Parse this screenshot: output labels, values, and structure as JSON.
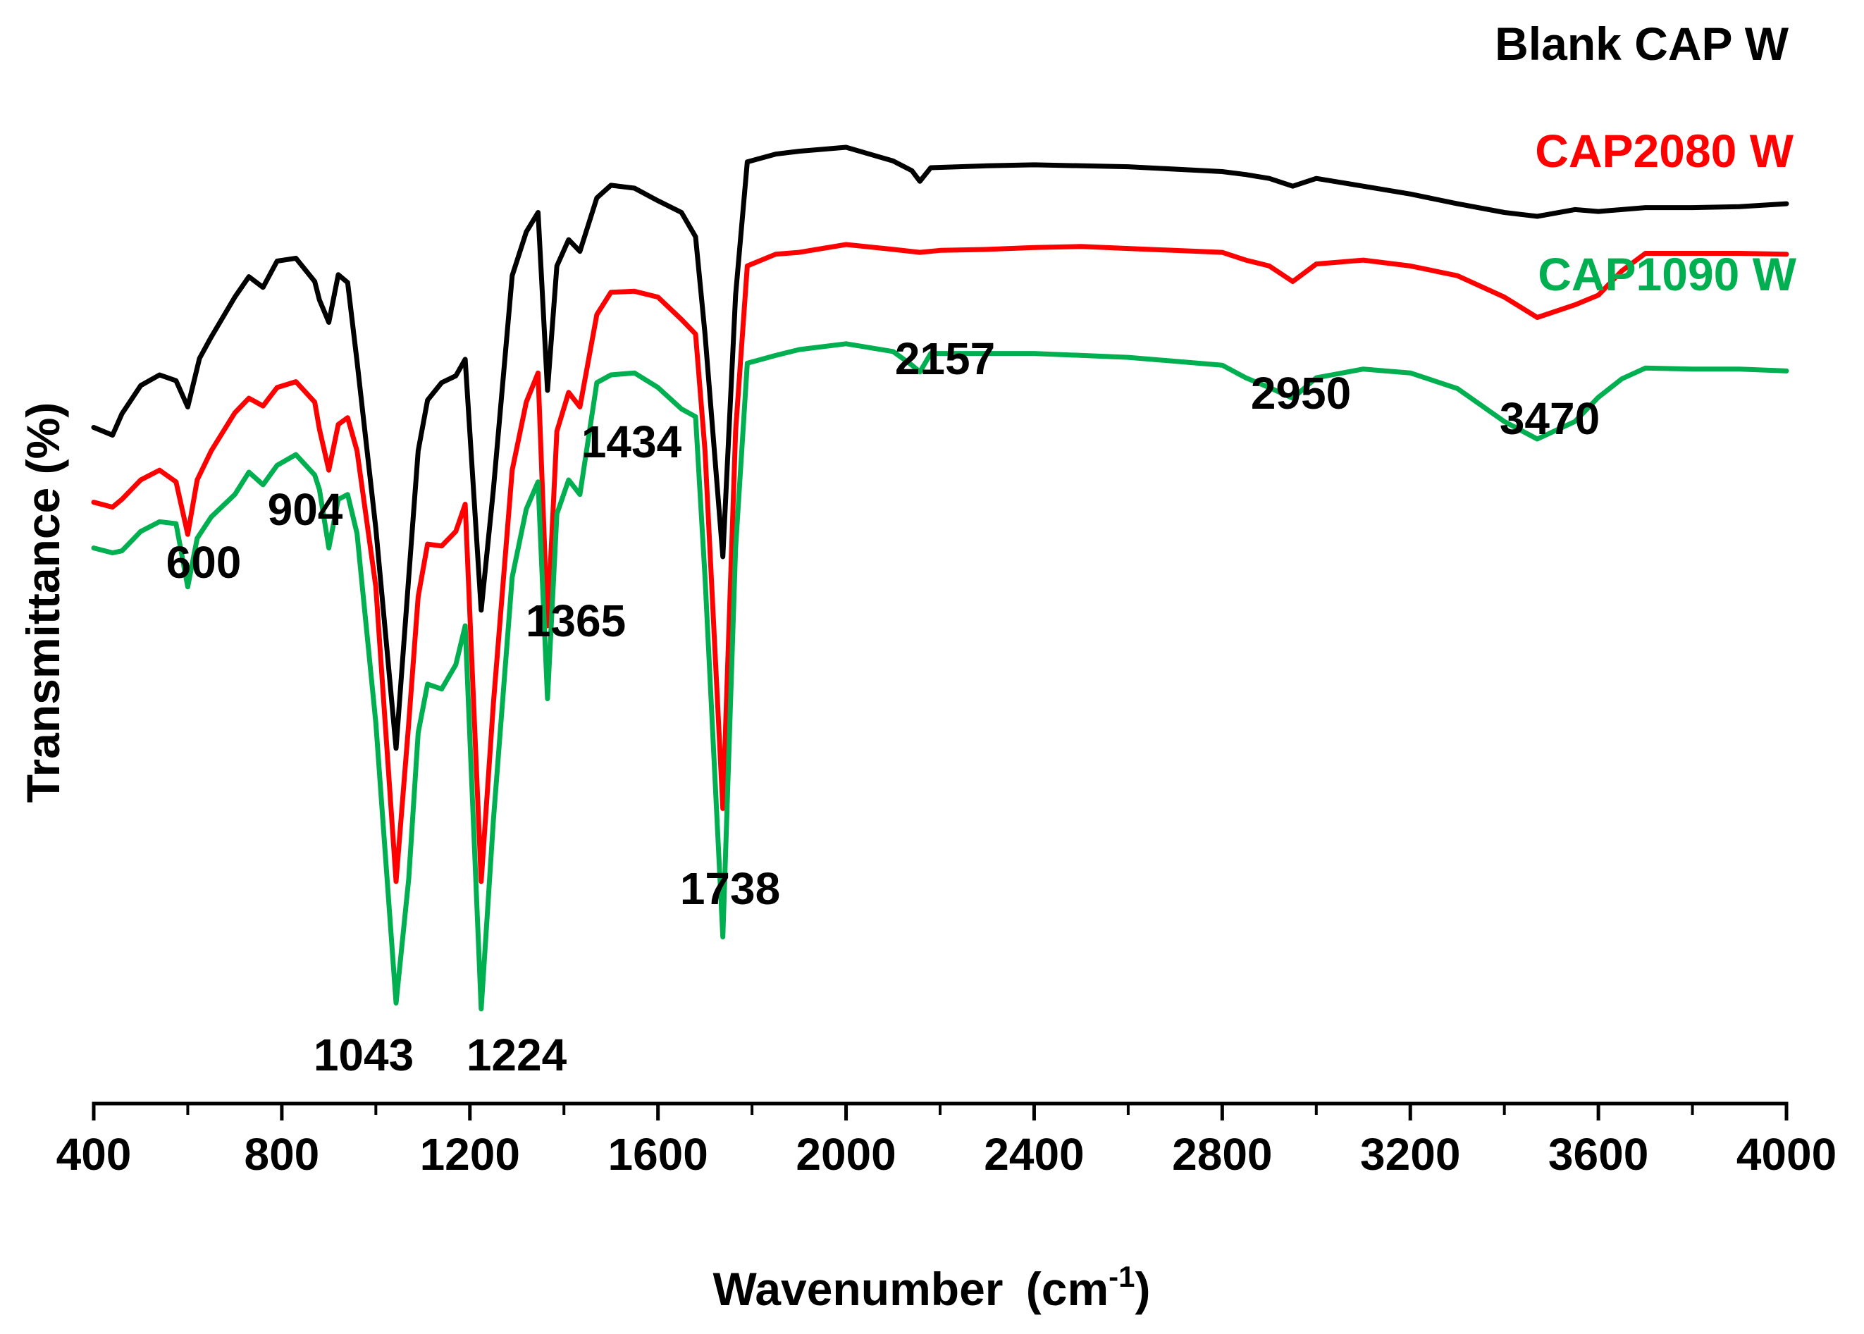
{
  "chart_data": {
    "type": "line",
    "title": "",
    "xlabel": "Wavenumber",
    "xlabel_unit_prefix": "(cm",
    "xlabel_unit_sup": "-1",
    "xlabel_unit_suffix": ")",
    "ylabel": "Transmittance (%)",
    "xlim": [
      400,
      4000
    ],
    "x_ticks": [
      "400",
      "800",
      "1200",
      "1600",
      "2000",
      "2400",
      "2800",
      "3200",
      "3600",
      "4000"
    ],
    "y_axis_shown": false,
    "grid": false,
    "legend": "right-aligned labels beside each curve",
    "series": [
      {
        "name": "Blank CAP W",
        "color": "#000000",
        "points": [
          [
            400,
            39.6
          ],
          [
            440,
            40.4
          ],
          [
            460,
            38.2
          ],
          [
            500,
            35.3
          ],
          [
            540,
            34.2
          ],
          [
            575,
            34.8
          ],
          [
            600,
            37.5
          ],
          [
            625,
            32.5
          ],
          [
            650,
            30.3
          ],
          [
            700,
            26.2
          ],
          [
            730,
            24.1
          ],
          [
            760,
            25.2
          ],
          [
            790,
            22.5
          ],
          [
            830,
            22.2
          ],
          [
            870,
            24.6
          ],
          [
            880,
            26.5
          ],
          [
            900,
            28.8
          ],
          [
            920,
            23.9
          ],
          [
            940,
            24.7
          ],
          [
            960,
            32.8
          ],
          [
            1000,
            50.0
          ],
          [
            1043,
            72.6
          ],
          [
            1070,
            55.0
          ],
          [
            1090,
            42.0
          ],
          [
            1110,
            36.8
          ],
          [
            1140,
            35.0
          ],
          [
            1170,
            34.3
          ],
          [
            1190,
            32.6
          ],
          [
            1224,
            58.4
          ],
          [
            1250,
            46.0
          ],
          [
            1290,
            24.0
          ],
          [
            1320,
            19.5
          ],
          [
            1345,
            17.5
          ],
          [
            1365,
            35.8
          ],
          [
            1385,
            23.0
          ],
          [
            1410,
            20.3
          ],
          [
            1434,
            21.5
          ],
          [
            1470,
            16.0
          ],
          [
            1500,
            14.7
          ],
          [
            1550,
            15.0
          ],
          [
            1600,
            16.3
          ],
          [
            1650,
            17.5
          ],
          [
            1680,
            20.0
          ],
          [
            1700,
            30.0
          ],
          [
            1738,
            52.9
          ],
          [
            1765,
            26.0
          ],
          [
            1790,
            12.3
          ],
          [
            1850,
            11.5
          ],
          [
            1900,
            11.2
          ],
          [
            2000,
            10.8
          ],
          [
            2050,
            11.5
          ],
          [
            2100,
            12.2
          ],
          [
            2140,
            13.2
          ],
          [
            2157,
            14.3
          ],
          [
            2180,
            12.9
          ],
          [
            2300,
            12.7
          ],
          [
            2400,
            12.6
          ],
          [
            2600,
            12.8
          ],
          [
            2800,
            13.3
          ],
          [
            2850,
            13.6
          ],
          [
            2900,
            14.0
          ],
          [
            2950,
            14.8
          ],
          [
            3000,
            14.0
          ],
          [
            3100,
            14.8
          ],
          [
            3200,
            15.6
          ],
          [
            3300,
            16.6
          ],
          [
            3400,
            17.5
          ],
          [
            3470,
            17.9
          ],
          [
            3550,
            17.2
          ],
          [
            3600,
            17.4
          ],
          [
            3700,
            17.0
          ],
          [
            3800,
            17.0
          ],
          [
            3900,
            16.9
          ],
          [
            4000,
            16.6
          ]
        ]
      },
      {
        "name": "CAP2080 W",
        "color": "#ff0000",
        "points": [
          [
            400,
            47.3
          ],
          [
            440,
            47.8
          ],
          [
            460,
            47.0
          ],
          [
            500,
            45.0
          ],
          [
            540,
            44.0
          ],
          [
            575,
            45.2
          ],
          [
            600,
            50.6
          ],
          [
            620,
            45.0
          ],
          [
            650,
            42.0
          ],
          [
            700,
            38.1
          ],
          [
            730,
            36.6
          ],
          [
            760,
            37.4
          ],
          [
            790,
            35.5
          ],
          [
            830,
            34.9
          ],
          [
            870,
            37.0
          ],
          [
            880,
            39.8
          ],
          [
            900,
            44.0
          ],
          [
            920,
            39.3
          ],
          [
            940,
            38.6
          ],
          [
            960,
            42.0
          ],
          [
            1000,
            56.0
          ],
          [
            1043,
            86.3
          ],
          [
            1070,
            70.0
          ],
          [
            1090,
            57.0
          ],
          [
            1110,
            51.6
          ],
          [
            1140,
            51.8
          ],
          [
            1170,
            50.3
          ],
          [
            1190,
            47.5
          ],
          [
            1224,
            86.3
          ],
          [
            1250,
            68.0
          ],
          [
            1290,
            44.0
          ],
          [
            1320,
            37.0
          ],
          [
            1345,
            34.0
          ],
          [
            1365,
            60.0
          ],
          [
            1385,
            40.0
          ],
          [
            1410,
            36.0
          ],
          [
            1434,
            37.5
          ],
          [
            1470,
            28.0
          ],
          [
            1500,
            25.7
          ],
          [
            1550,
            25.6
          ],
          [
            1600,
            26.2
          ],
          [
            1650,
            28.5
          ],
          [
            1680,
            30.0
          ],
          [
            1700,
            42.0
          ],
          [
            1738,
            78.8
          ],
          [
            1765,
            40.0
          ],
          [
            1790,
            23.0
          ],
          [
            1850,
            21.8
          ],
          [
            1900,
            21.6
          ],
          [
            2000,
            20.8
          ],
          [
            2100,
            21.3
          ],
          [
            2157,
            21.6
          ],
          [
            2200,
            21.4
          ],
          [
            2300,
            21.3
          ],
          [
            2400,
            21.1
          ],
          [
            2500,
            21.0
          ],
          [
            2600,
            21.2
          ],
          [
            2800,
            21.6
          ],
          [
            2850,
            22.4
          ],
          [
            2900,
            23.0
          ],
          [
            2950,
            24.6
          ],
          [
            3000,
            22.8
          ],
          [
            3100,
            22.4
          ],
          [
            3200,
            23.0
          ],
          [
            3300,
            24.0
          ],
          [
            3400,
            26.2
          ],
          [
            3470,
            28.3
          ],
          [
            3550,
            27.0
          ],
          [
            3600,
            26.0
          ],
          [
            3650,
            23.5
          ],
          [
            3700,
            21.7
          ],
          [
            3800,
            21.7
          ],
          [
            3900,
            21.7
          ],
          [
            4000,
            21.8
          ]
        ]
      },
      {
        "name": "CAP1090 W",
        "color": "#00b050",
        "points": [
          [
            400,
            52.0
          ],
          [
            440,
            52.5
          ],
          [
            460,
            52.3
          ],
          [
            500,
            50.3
          ],
          [
            540,
            49.3
          ],
          [
            575,
            49.5
          ],
          [
            600,
            56.0
          ],
          [
            620,
            51.0
          ],
          [
            650,
            48.8
          ],
          [
            700,
            46.5
          ],
          [
            730,
            44.2
          ],
          [
            760,
            45.5
          ],
          [
            790,
            43.5
          ],
          [
            830,
            42.4
          ],
          [
            870,
            44.5
          ],
          [
            880,
            46.0
          ],
          [
            900,
            52.0
          ],
          [
            920,
            47.0
          ],
          [
            940,
            46.5
          ],
          [
            960,
            50.5
          ],
          [
            1000,
            70.0
          ],
          [
            1043,
            98.8
          ],
          [
            1070,
            86.0
          ],
          [
            1090,
            71.0
          ],
          [
            1110,
            66.0
          ],
          [
            1140,
            66.5
          ],
          [
            1170,
            64.0
          ],
          [
            1190,
            60.0
          ],
          [
            1224,
            99.4
          ],
          [
            1250,
            80.0
          ],
          [
            1290,
            55.0
          ],
          [
            1320,
            48.0
          ],
          [
            1345,
            45.2
          ],
          [
            1365,
            67.5
          ],
          [
            1385,
            48.5
          ],
          [
            1410,
            45.0
          ],
          [
            1434,
            46.5
          ],
          [
            1470,
            35.0
          ],
          [
            1500,
            34.2
          ],
          [
            1550,
            34.0
          ],
          [
            1600,
            35.5
          ],
          [
            1650,
            37.7
          ],
          [
            1680,
            38.5
          ],
          [
            1700,
            55.0
          ],
          [
            1738,
            92.0
          ],
          [
            1765,
            52.0
          ],
          [
            1790,
            33.0
          ],
          [
            1850,
            32.2
          ],
          [
            1900,
            31.6
          ],
          [
            2000,
            31.0
          ],
          [
            2100,
            31.8
          ],
          [
            2140,
            33.2
          ],
          [
            2157,
            33.9
          ],
          [
            2180,
            32.0
          ],
          [
            2300,
            32.0
          ],
          [
            2400,
            32.0
          ],
          [
            2600,
            32.4
          ],
          [
            2800,
            33.2
          ],
          [
            2850,
            34.5
          ],
          [
            2900,
            35.5
          ],
          [
            2950,
            36.6
          ],
          [
            3000,
            34.5
          ],
          [
            3100,
            33.6
          ],
          [
            3200,
            34.0
          ],
          [
            3300,
            35.6
          ],
          [
            3400,
            39.0
          ],
          [
            3470,
            40.8
          ],
          [
            3550,
            39.0
          ],
          [
            3600,
            36.5
          ],
          [
            3650,
            34.6
          ],
          [
            3700,
            33.5
          ],
          [
            3800,
            33.6
          ],
          [
            3900,
            33.6
          ],
          [
            4000,
            33.8
          ]
        ]
      }
    ],
    "annotations": [
      {
        "text": "600",
        "x": 600
      },
      {
        "text": "904",
        "x": 904
      },
      {
        "text": "1043",
        "x": 1043
      },
      {
        "text": "1224",
        "x": 1224
      },
      {
        "text": "1365",
        "x": 1365
      },
      {
        "text": "1434",
        "x": 1434
      },
      {
        "text": "1738",
        "x": 1738
      },
      {
        "text": "2157",
        "x": 2157
      },
      {
        "text": "2950",
        "x": 2950
      },
      {
        "text": "3470",
        "x": 3470
      }
    ]
  }
}
